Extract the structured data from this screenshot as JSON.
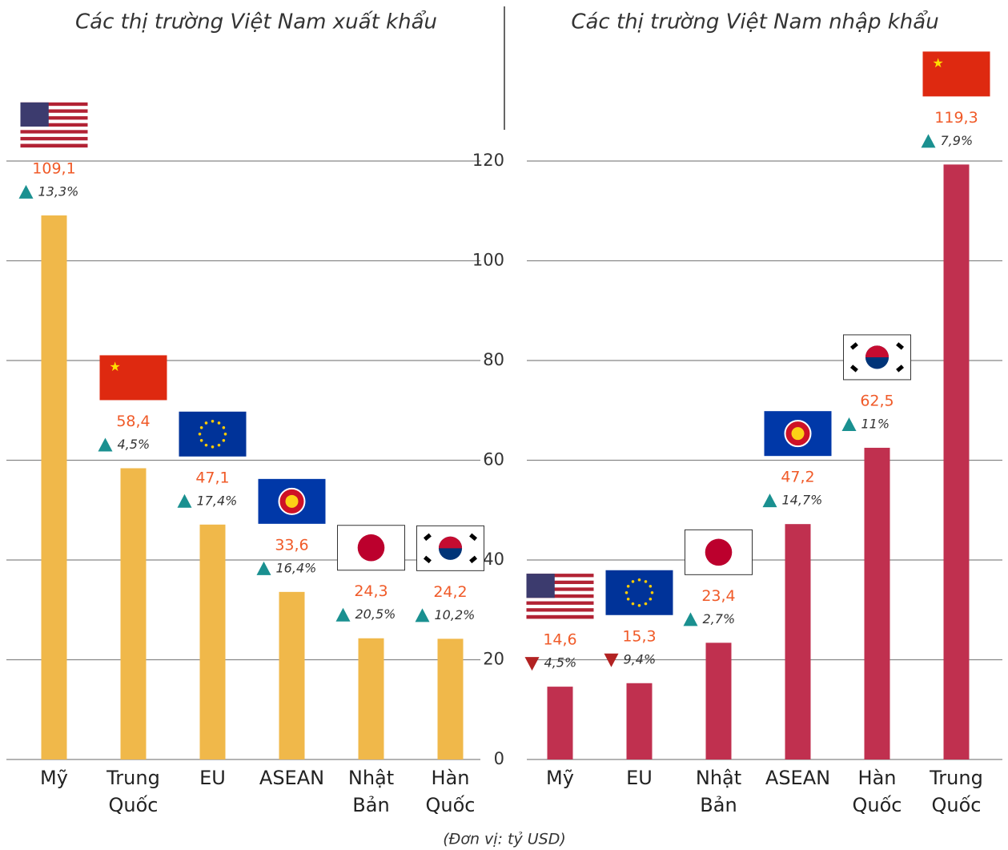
{
  "footnote": "(Đơn vị: tỷ USD)",
  "chart_data": [
    {
      "type": "bar",
      "title": "Các thị trường Việt Nam xuất khẩu",
      "categories": [
        "Mỹ",
        "Trung Quốc",
        "EU",
        "ASEAN",
        "Nhật Bản",
        "Hàn Quốc"
      ],
      "values": [
        109.1,
        58.4,
        47.1,
        33.6,
        24.3,
        24.2
      ],
      "value_labels": [
        "109,1",
        "58,4",
        "47,1",
        "33,6",
        "24,3",
        "24,2"
      ],
      "changes": [
        13.3,
        4.5,
        17.4,
        16.4,
        20.5,
        10.2
      ],
      "change_labels": [
        "13,3%",
        "4,5%",
        "17,4%",
        "16,4%",
        "20,5%",
        "10,2%"
      ],
      "flags": [
        "us",
        "cn",
        "eu",
        "asean",
        "jp",
        "kr"
      ],
      "color": "#f0b84a",
      "ylim": [
        0,
        120
      ],
      "grid": true
    },
    {
      "type": "bar",
      "title": "Các thị trường Việt Nam nhập khẩu",
      "categories": [
        "Mỹ",
        "EU",
        "Nhật Bản",
        "ASEAN",
        "Hàn Quốc",
        "Trung Quốc"
      ],
      "values": [
        14.6,
        15.3,
        23.4,
        47.2,
        62.5,
        119.3
      ],
      "value_labels": [
        "14,6",
        "15,3",
        "23,4",
        "47,2",
        "62,5",
        "119,3"
      ],
      "changes": [
        -4.5,
        -9.4,
        2.7,
        14.7,
        11,
        7.9
      ],
      "change_labels": [
        "4,5%",
        "9,4%",
        "2,7%",
        "14,7%",
        "11%",
        "7,9%"
      ],
      "flags": [
        "us",
        "eu",
        "jp",
        "asean",
        "kr",
        "cn"
      ],
      "color": "#c0304f",
      "ylim": [
        0,
        120
      ],
      "yticks": [
        0,
        20,
        40,
        60,
        80,
        100,
        120
      ],
      "grid": true
    }
  ]
}
